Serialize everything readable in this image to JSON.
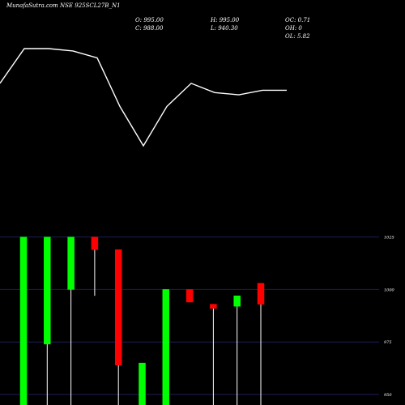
{
  "header": {
    "title": "MunafaSutra.com NSE 925SCL27B_N1",
    "open_label": "O: 995.00",
    "close_label": "C: 988.00",
    "high_label": "H: 995.00",
    "low_label": "L: 940.30",
    "oc_label": "OC: 0.71",
    "oh_label": "OH: 0",
    "ol_label": "OL: 5.82"
  },
  "colors": {
    "background": "#000000",
    "up": "#00ff00",
    "down": "#ff0000",
    "grid": "#1e1e5a",
    "line": "#ffffff",
    "wick": "#ffffff"
  },
  "chart_data": {
    "type": "candlestick",
    "yticks": [
      "1025",
      "1000",
      "975",
      "950"
    ],
    "ylim": [
      945,
      1026
    ],
    "line_series": [
      0.35,
      0.5,
      0.5,
      0.49,
      0.46,
      0.25,
      0.08,
      0.25,
      0.35,
      0.31,
      0.3,
      0.32,
      0.32
    ],
    "candles": [
      {
        "direction": "up",
        "open": 940.3,
        "close": 1025,
        "high": 1025,
        "low": 940.3
      },
      {
        "direction": "up",
        "open": 974,
        "close": 1025,
        "high": 1025,
        "low": 945
      },
      {
        "direction": "up",
        "open": 1000,
        "close": 1025,
        "high": 1025,
        "low": 945
      },
      {
        "direction": "down",
        "open": 1025,
        "close": 1019,
        "high": 1025,
        "low": 997
      },
      {
        "direction": "down",
        "open": 1019,
        "close": 964,
        "high": 1019,
        "low": 945
      },
      {
        "direction": "up",
        "open": 945,
        "close": 965,
        "high": 965,
        "low": 945
      },
      {
        "direction": "up",
        "open": 945,
        "close": 1000,
        "high": 1000,
        "low": 945
      },
      {
        "direction": "down",
        "open": 1000,
        "close": 994,
        "high": 1000,
        "low": 994
      },
      {
        "direction": "down",
        "open": 993,
        "close": 991,
        "high": 993,
        "low": 945
      },
      {
        "direction": "up",
        "open": 992,
        "close": 997,
        "high": 997,
        "low": 945
      },
      {
        "direction": "down",
        "open": 1003,
        "close": 993,
        "high": 1003,
        "low": 945
      }
    ]
  }
}
